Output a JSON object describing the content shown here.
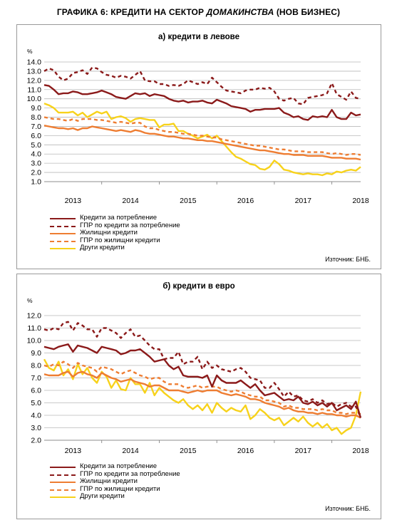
{
  "title": {
    "pre": "ГРАФИКА 6: КРЕДИТИ НА СЕКТОР ",
    "italic": "ДОМАКИНСТВА",
    "post": " (НОВ БИЗНЕС)"
  },
  "colors": {
    "dark_red": "#8b1a1a",
    "orange": "#ee7d32",
    "yellow": "#f7d21b",
    "grid": "#b9b9b9"
  },
  "chart_data": [
    {
      "type": "line",
      "title": "а) кредити в левове",
      "ylabel": "%",
      "ylim": [
        1.0,
        14.0
      ],
      "yticks": [
        "14.0",
        "13.0",
        "12.0",
        "11.0",
        "10.0",
        "9.0",
        "8.0",
        "7.0",
        "6.0",
        "5.0",
        "4.0",
        "3.0",
        "2.0",
        "1.0"
      ],
      "x_labels": [
        "2013",
        "2014",
        "2015",
        "2016",
        "2017",
        "2018"
      ],
      "x_start": "2012-09",
      "grid": true,
      "legend_position": "bottom-left",
      "source": "Източник: БНБ.",
      "series": [
        {
          "name": "Кредити за потребление",
          "style": "solid",
          "color_key": "dark_red",
          "values": [
            11.5,
            11.4,
            11.0,
            10.5,
            10.6,
            10.6,
            10.8,
            10.7,
            10.5,
            10.5,
            10.6,
            10.7,
            10.9,
            10.7,
            10.5,
            10.2,
            10.1,
            10.0,
            10.3,
            10.6,
            10.5,
            10.6,
            10.3,
            10.5,
            10.4,
            10.3,
            10.0,
            9.8,
            9.7,
            9.8,
            9.6,
            9.7,
            9.7,
            9.8,
            9.6,
            9.5,
            9.9,
            9.7,
            9.5,
            9.2,
            9.1,
            9.0,
            8.9,
            8.6,
            8.8,
            8.8,
            8.9,
            8.9,
            8.9,
            9.0,
            8.5,
            8.3,
            8.0,
            8.1,
            7.8,
            7.7,
            8.1,
            8.0,
            8.1,
            8.0,
            8.8,
            8.0,
            7.8,
            7.8,
            8.5,
            8.2,
            8.3
          ]
        },
        {
          "name": "ГПР по кредити за потребление",
          "style": "dashed",
          "color_key": "dark_red",
          "values": [
            13.0,
            13.3,
            13.1,
            12.4,
            12.0,
            12.2,
            12.8,
            12.9,
            13.1,
            12.7,
            13.4,
            13.3,
            12.9,
            12.6,
            12.5,
            12.3,
            12.5,
            12.4,
            12.2,
            12.6,
            13.0,
            12.0,
            11.9,
            11.9,
            11.6,
            11.6,
            11.4,
            11.5,
            11.4,
            11.6,
            12.0,
            11.8,
            11.6,
            11.8,
            11.6,
            12.3,
            11.8,
            11.3,
            10.9,
            10.8,
            10.7,
            10.6,
            10.9,
            11.0,
            11.0,
            11.2,
            11.1,
            11.2,
            10.8,
            10.0,
            9.8,
            10.0,
            10.1,
            9.5,
            9.4,
            10.1,
            10.2,
            10.3,
            10.4,
            10.6,
            11.7,
            10.5,
            10.2,
            9.9,
            10.8,
            10.1,
            10.0
          ]
        },
        {
          "name": "Жилищни кредити",
          "style": "solid",
          "color_key": "orange",
          "values": [
            7.1,
            7.0,
            6.9,
            6.8,
            6.8,
            6.7,
            6.8,
            6.6,
            6.8,
            6.8,
            7.0,
            6.9,
            6.8,
            6.7,
            6.6,
            6.5,
            6.6,
            6.5,
            6.4,
            6.6,
            6.5,
            6.3,
            6.2,
            6.2,
            6.1,
            6.0,
            5.9,
            5.9,
            5.8,
            5.7,
            5.7,
            5.6,
            5.5,
            5.5,
            5.4,
            5.4,
            5.3,
            5.2,
            5.1,
            5.0,
            4.9,
            4.8,
            4.7,
            4.6,
            4.5,
            4.4,
            4.4,
            4.3,
            4.2,
            4.1,
            4.0,
            4.0,
            3.9,
            3.9,
            3.9,
            3.8,
            3.8,
            3.8,
            3.8,
            3.7,
            3.6,
            3.6,
            3.6,
            3.5,
            3.5,
            3.5,
            3.4
          ]
        },
        {
          "name": "ГПР по жилищни кредити",
          "style": "dashed",
          "color_key": "orange",
          "values": [
            8.0,
            7.9,
            7.8,
            7.8,
            7.7,
            7.6,
            7.8,
            7.6,
            7.8,
            7.8,
            7.8,
            7.7,
            7.7,
            7.6,
            7.5,
            7.4,
            7.5,
            7.4,
            7.3,
            7.4,
            7.4,
            7.0,
            6.8,
            6.8,
            6.6,
            6.5,
            6.4,
            6.4,
            6.3,
            6.2,
            6.2,
            6.1,
            6.0,
            6.0,
            5.9,
            5.8,
            5.8,
            5.6,
            5.5,
            5.4,
            5.3,
            5.2,
            5.1,
            5.0,
            4.9,
            4.9,
            4.8,
            4.7,
            4.6,
            4.5,
            4.5,
            4.4,
            4.3,
            4.3,
            4.3,
            4.2,
            4.2,
            4.2,
            4.2,
            4.1,
            4.0,
            4.1,
            4.0,
            3.9,
            4.0,
            4.0,
            3.9
          ]
        },
        {
          "name": "Други кредити",
          "style": "solid",
          "color_key": "yellow",
          "values": [
            9.5,
            9.3,
            9.0,
            8.5,
            8.5,
            8.5,
            8.6,
            8.2,
            8.5,
            8.0,
            8.3,
            8.6,
            8.4,
            8.6,
            7.8,
            8.0,
            8.1,
            7.9,
            7.5,
            7.8,
            7.9,
            7.8,
            7.7,
            7.7,
            6.9,
            7.2,
            7.2,
            7.3,
            6.5,
            6.5,
            6.2,
            6.0,
            5.7,
            5.9,
            6.1,
            5.7,
            6.0,
            5.4,
            4.8,
            4.2,
            3.7,
            3.5,
            3.2,
            2.9,
            2.8,
            2.4,
            2.3,
            2.6,
            3.3,
            2.9,
            2.3,
            2.2,
            2.0,
            1.9,
            1.8,
            1.9,
            1.8,
            1.8,
            1.7,
            1.9,
            1.8,
            2.1,
            2.0,
            2.2,
            2.3,
            2.2,
            2.6
          ]
        }
      ]
    },
    {
      "type": "line",
      "title": "б) кредити в евро",
      "ylabel": "%",
      "ylim": [
        2.0,
        12.0
      ],
      "yticks": [
        "12.0",
        "11.0",
        "10.0",
        "9.0",
        "8.0",
        "7.0",
        "6.0",
        "5.0",
        "4.0",
        "3.0",
        "2.0"
      ],
      "x_labels": [
        "2013",
        "2014",
        "2015",
        "2016",
        "2017",
        "2018"
      ],
      "x_start": "2012-09",
      "grid": true,
      "legend_position": "bottom-left",
      "source": "Източник: БНБ.",
      "series": [
        {
          "name": "Кредити за потребление",
          "style": "solid",
          "color_key": "dark_red",
          "values": [
            9.5,
            9.4,
            9.3,
            9.5,
            9.6,
            9.7,
            9.1,
            9.6,
            9.5,
            9.4,
            9.2,
            9.0,
            9.5,
            9.4,
            9.3,
            9.2,
            8.9,
            9.0,
            9.2,
            9.2,
            9.3,
            9.0,
            8.7,
            8.3,
            8.4,
            8.5,
            8.0,
            7.7,
            7.9,
            7.2,
            7.1,
            7.1,
            7.1,
            7.0,
            7.2,
            6.3,
            7.2,
            6.8,
            6.6,
            6.6,
            6.6,
            6.8,
            6.5,
            6.2,
            6.5,
            6.0,
            5.6,
            5.7,
            5.8,
            5.5,
            5.2,
            5.3,
            5.2,
            5.5,
            5.0,
            4.9,
            5.1,
            4.8,
            5.0,
            4.7,
            5.0,
            4.4,
            4.6,
            4.8,
            4.5,
            5.1,
            3.8
          ]
        },
        {
          "name": "ГПР по кредити за потребление",
          "style": "dashed",
          "color_key": "dark_red",
          "values": [
            10.9,
            10.8,
            11.0,
            10.9,
            11.4,
            11.5,
            10.8,
            11.4,
            11.2,
            10.9,
            10.9,
            10.3,
            11.0,
            11.0,
            10.8,
            10.6,
            10.2,
            10.6,
            10.9,
            10.3,
            10.4,
            10.0,
            9.6,
            9.3,
            9.3,
            8.5,
            8.6,
            8.6,
            9.1,
            8.1,
            8.3,
            8.3,
            8.7,
            7.7,
            8.3,
            7.8,
            8.0,
            7.7,
            7.6,
            7.5,
            7.7,
            7.8,
            7.5,
            7.0,
            6.9,
            6.8,
            6.2,
            6.2,
            6.6,
            6.1,
            5.5,
            5.9,
            5.5,
            5.6,
            5.2,
            5.1,
            5.3,
            5.0,
            5.2,
            4.9,
            5.0,
            4.7,
            4.9,
            5.0,
            4.7,
            4.7,
            3.9
          ]
        },
        {
          "name": "Жилищни кредити",
          "style": "solid",
          "color_key": "orange",
          "values": [
            7.3,
            7.2,
            7.2,
            7.2,
            7.4,
            7.5,
            7.1,
            7.4,
            7.5,
            7.3,
            7.2,
            7.0,
            7.4,
            7.2,
            7.0,
            6.9,
            6.7,
            6.8,
            6.9,
            6.7,
            6.6,
            6.5,
            6.3,
            6.4,
            6.4,
            6.2,
            6.0,
            6.0,
            6.0,
            5.9,
            5.8,
            5.9,
            6.0,
            5.9,
            6.0,
            6.0,
            6.0,
            5.8,
            5.7,
            5.6,
            5.7,
            5.6,
            5.5,
            5.3,
            5.3,
            5.2,
            5.0,
            4.9,
            4.8,
            4.7,
            4.5,
            4.6,
            4.4,
            4.3,
            4.3,
            4.2,
            4.2,
            4.1,
            4.2,
            4.1,
            4.1,
            4.0,
            4.0,
            3.9,
            4.0,
            4.0,
            3.8
          ]
        },
        {
          "name": "ГПР по жилищни кредити",
          "style": "dashed",
          "color_key": "orange",
          "values": [
            8.0,
            7.9,
            8.1,
            8.0,
            8.3,
            8.1,
            7.8,
            8.2,
            8.0,
            7.9,
            7.8,
            7.5,
            7.9,
            7.8,
            7.7,
            7.5,
            7.3,
            7.5,
            7.6,
            7.4,
            7.2,
            7.1,
            6.9,
            7.0,
            7.0,
            6.7,
            6.5,
            6.5,
            6.5,
            6.3,
            6.2,
            6.3,
            6.4,
            6.2,
            6.3,
            6.3,
            6.3,
            6.1,
            6.0,
            5.9,
            6.0,
            5.9,
            5.7,
            5.6,
            5.5,
            5.5,
            5.2,
            5.2,
            5.1,
            5.0,
            4.7,
            4.8,
            4.6,
            4.6,
            4.5,
            4.5,
            4.5,
            4.4,
            4.5,
            4.4,
            4.4,
            4.2,
            4.2,
            4.1,
            4.2,
            4.2,
            4.1
          ]
        },
        {
          "name": "Други кредити",
          "style": "solid",
          "color_key": "yellow",
          "values": [
            8.5,
            7.8,
            7.6,
            8.3,
            7.2,
            7.7,
            6.9,
            8.1,
            7.3,
            7.8,
            7.0,
            6.6,
            7.5,
            7.1,
            6.2,
            6.8,
            6.1,
            6.0,
            7.0,
            6.5,
            6.5,
            5.8,
            6.6,
            5.6,
            6.2,
            5.8,
            5.5,
            5.2,
            5.0,
            5.3,
            4.8,
            4.5,
            4.8,
            4.4,
            4.9,
            4.2,
            5.0,
            4.6,
            4.3,
            4.6,
            4.4,
            4.3,
            4.8,
            3.7,
            4.0,
            4.5,
            4.2,
            3.8,
            3.6,
            3.8,
            3.2,
            3.5,
            3.8,
            3.5,
            3.9,
            3.4,
            3.1,
            3.4,
            3.0,
            3.3,
            2.8,
            3.0,
            2.5,
            2.8,
            3.0,
            4.0,
            5.9
          ]
        }
      ]
    }
  ]
}
